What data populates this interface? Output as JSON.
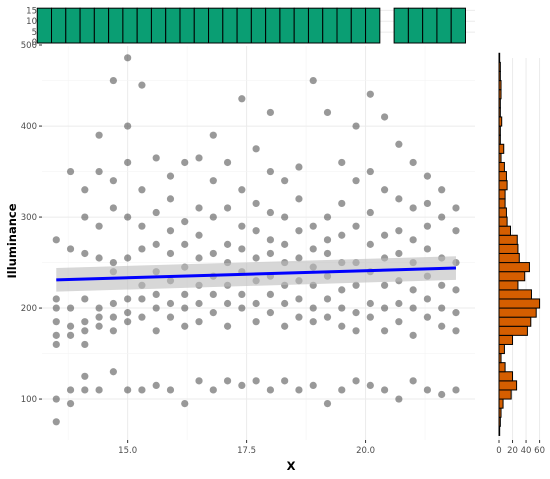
{
  "chart_data": {
    "type": "scatter",
    "xlabel": "X",
    "ylabel": "Illuminance",
    "xlim": [
      13.2,
      22.3
    ],
    "ylim": [
      55,
      488
    ],
    "x_ticks": [
      "15.0",
      "17.5",
      "20.0"
    ],
    "y_ticks": [
      "100",
      "200",
      "300",
      "400"
    ],
    "grid": true,
    "points": [
      [
        13.5,
        75
      ],
      [
        13.5,
        100
      ],
      [
        13.5,
        160
      ],
      [
        13.5,
        170
      ],
      [
        13.5,
        185
      ],
      [
        13.5,
        200
      ],
      [
        13.5,
        210
      ],
      [
        13.5,
        275
      ],
      [
        13.8,
        95
      ],
      [
        13.8,
        110
      ],
      [
        13.8,
        170
      ],
      [
        13.8,
        180
      ],
      [
        13.8,
        200
      ],
      [
        13.8,
        265
      ],
      [
        13.8,
        350
      ],
      [
        14.1,
        110
      ],
      [
        14.1,
        125
      ],
      [
        14.1,
        160
      ],
      [
        14.1,
        175
      ],
      [
        14.1,
        185
      ],
      [
        14.1,
        210
      ],
      [
        14.1,
        260
      ],
      [
        14.1,
        300
      ],
      [
        14.1,
        330
      ],
      [
        14.4,
        110
      ],
      [
        14.4,
        180
      ],
      [
        14.4,
        190
      ],
      [
        14.4,
        200
      ],
      [
        14.4,
        255
      ],
      [
        14.4,
        290
      ],
      [
        14.4,
        350
      ],
      [
        14.4,
        390
      ],
      [
        14.7,
        130
      ],
      [
        14.7,
        175
      ],
      [
        14.7,
        190
      ],
      [
        14.7,
        205
      ],
      [
        14.7,
        240
      ],
      [
        14.7,
        250
      ],
      [
        14.7,
        310
      ],
      [
        14.7,
        340
      ],
      [
        14.7,
        450
      ],
      [
        15.0,
        110
      ],
      [
        15.0,
        185
      ],
      [
        15.0,
        195
      ],
      [
        15.0,
        210
      ],
      [
        15.0,
        255
      ],
      [
        15.0,
        300
      ],
      [
        15.0,
        360
      ],
      [
        15.0,
        400
      ],
      [
        15.0,
        475
      ],
      [
        15.3,
        110
      ],
      [
        15.3,
        190
      ],
      [
        15.3,
        210
      ],
      [
        15.3,
        225
      ],
      [
        15.3,
        265
      ],
      [
        15.3,
        290
      ],
      [
        15.3,
        330
      ],
      [
        15.3,
        445
      ],
      [
        15.6,
        115
      ],
      [
        15.6,
        175
      ],
      [
        15.6,
        200
      ],
      [
        15.6,
        215
      ],
      [
        15.6,
        240
      ],
      [
        15.6,
        270
      ],
      [
        15.6,
        305
      ],
      [
        15.6,
        365
      ],
      [
        15.9,
        110
      ],
      [
        15.9,
        190
      ],
      [
        15.9,
        205
      ],
      [
        15.9,
        230
      ],
      [
        15.9,
        260
      ],
      [
        15.9,
        285
      ],
      [
        15.9,
        320
      ],
      [
        15.9,
        345
      ],
      [
        16.2,
        95
      ],
      [
        16.2,
        180
      ],
      [
        16.2,
        200
      ],
      [
        16.2,
        215
      ],
      [
        16.2,
        245
      ],
      [
        16.2,
        270
      ],
      [
        16.2,
        295
      ],
      [
        16.2,
        360
      ],
      [
        16.5,
        120
      ],
      [
        16.5,
        185
      ],
      [
        16.5,
        205
      ],
      [
        16.5,
        225
      ],
      [
        16.5,
        255
      ],
      [
        16.5,
        280
      ],
      [
        16.5,
        310
      ],
      [
        16.5,
        365
      ],
      [
        16.8,
        110
      ],
      [
        16.8,
        195
      ],
      [
        16.8,
        215
      ],
      [
        16.8,
        235
      ],
      [
        16.8,
        260
      ],
      [
        16.8,
        300
      ],
      [
        16.8,
        340
      ],
      [
        16.8,
        390
      ],
      [
        17.1,
        120
      ],
      [
        17.1,
        180
      ],
      [
        17.1,
        205
      ],
      [
        17.1,
        225
      ],
      [
        17.1,
        250
      ],
      [
        17.1,
        270
      ],
      [
        17.1,
        310
      ],
      [
        17.1,
        360
      ],
      [
        17.4,
        115
      ],
      [
        17.4,
        200
      ],
      [
        17.4,
        215
      ],
      [
        17.4,
        240
      ],
      [
        17.4,
        265
      ],
      [
        17.4,
        290
      ],
      [
        17.4,
        330
      ],
      [
        17.4,
        430
      ],
      [
        17.7,
        120
      ],
      [
        17.7,
        185
      ],
      [
        17.7,
        205
      ],
      [
        17.7,
        230
      ],
      [
        17.7,
        255
      ],
      [
        17.7,
        285
      ],
      [
        17.7,
        315
      ],
      [
        17.7,
        375
      ],
      [
        18.0,
        110
      ],
      [
        18.0,
        195
      ],
      [
        18.0,
        215
      ],
      [
        18.0,
        235
      ],
      [
        18.0,
        260
      ],
      [
        18.0,
        275
      ],
      [
        18.0,
        305
      ],
      [
        18.0,
        350
      ],
      [
        18.0,
        415
      ],
      [
        18.3,
        120
      ],
      [
        18.3,
        180
      ],
      [
        18.3,
        205
      ],
      [
        18.3,
        225
      ],
      [
        18.3,
        250
      ],
      [
        18.3,
        270
      ],
      [
        18.3,
        300
      ],
      [
        18.3,
        340
      ],
      [
        18.6,
        110
      ],
      [
        18.6,
        190
      ],
      [
        18.6,
        210
      ],
      [
        18.6,
        230
      ],
      [
        18.6,
        255
      ],
      [
        18.6,
        285
      ],
      [
        18.6,
        320
      ],
      [
        18.6,
        355
      ],
      [
        18.9,
        115
      ],
      [
        18.9,
        185
      ],
      [
        18.9,
        200
      ],
      [
        18.9,
        225
      ],
      [
        18.9,
        245
      ],
      [
        18.9,
        265
      ],
      [
        18.9,
        290
      ],
      [
        18.9,
        450
      ],
      [
        19.2,
        95
      ],
      [
        19.2,
        190
      ],
      [
        19.2,
        210
      ],
      [
        19.2,
        235
      ],
      [
        19.2,
        260
      ],
      [
        19.2,
        275
      ],
      [
        19.2,
        300
      ],
      [
        19.2,
        415
      ],
      [
        19.5,
        110
      ],
      [
        19.5,
        180
      ],
      [
        19.5,
        200
      ],
      [
        19.5,
        220
      ],
      [
        19.5,
        250
      ],
      [
        19.5,
        280
      ],
      [
        19.5,
        315
      ],
      [
        19.5,
        360
      ],
      [
        19.8,
        120
      ],
      [
        19.8,
        175
      ],
      [
        19.8,
        195
      ],
      [
        19.8,
        225
      ],
      [
        19.8,
        250
      ],
      [
        19.8,
        290
      ],
      [
        19.8,
        340
      ],
      [
        19.8,
        400
      ],
      [
        20.1,
        115
      ],
      [
        20.1,
        190
      ],
      [
        20.1,
        205
      ],
      [
        20.1,
        240
      ],
      [
        20.1,
        270
      ],
      [
        20.1,
        305
      ],
      [
        20.1,
        350
      ],
      [
        20.1,
        435
      ],
      [
        20.4,
        110
      ],
      [
        20.4,
        175
      ],
      [
        20.4,
        200
      ],
      [
        20.4,
        225
      ],
      [
        20.4,
        255
      ],
      [
        20.4,
        280
      ],
      [
        20.4,
        330
      ],
      [
        20.4,
        410
      ],
      [
        20.7,
        100
      ],
      [
        20.7,
        185
      ],
      [
        20.7,
        205
      ],
      [
        20.7,
        230
      ],
      [
        20.7,
        260
      ],
      [
        20.7,
        285
      ],
      [
        20.7,
        320
      ],
      [
        20.7,
        380
      ],
      [
        21.0,
        120
      ],
      [
        21.0,
        170
      ],
      [
        21.0,
        200
      ],
      [
        21.0,
        220
      ],
      [
        21.0,
        250
      ],
      [
        21.0,
        275
      ],
      [
        21.0,
        310
      ],
      [
        21.0,
        360
      ],
      [
        21.3,
        110
      ],
      [
        21.3,
        190
      ],
      [
        21.3,
        210
      ],
      [
        21.3,
        235
      ],
      [
        21.3,
        265
      ],
      [
        21.3,
        290
      ],
      [
        21.3,
        315
      ],
      [
        21.3,
        345
      ],
      [
        21.6,
        105
      ],
      [
        21.6,
        180
      ],
      [
        21.6,
        200
      ],
      [
        21.6,
        225
      ],
      [
        21.6,
        255
      ],
      [
        21.6,
        300
      ],
      [
        21.6,
        330
      ],
      [
        21.9,
        110
      ],
      [
        21.9,
        175
      ],
      [
        21.9,
        195
      ],
      [
        21.9,
        220
      ],
      [
        21.9,
        250
      ],
      [
        21.9,
        285
      ],
      [
        21.9,
        310
      ]
    ],
    "trend_line": {
      "x": [
        13.5,
        21.9
      ],
      "y": [
        231,
        244
      ],
      "ci": 13,
      "color": "#0000ff"
    },
    "point_color": "#333333",
    "top_histogram": {
      "y_ticks": [
        "500",
        "0",
        "5",
        "10",
        "15"
      ],
      "ylim": [
        0,
        17
      ],
      "bin_edges": [
        13.1,
        13.4,
        13.7,
        14.0,
        14.3,
        14.6,
        14.9,
        15.2,
        15.5,
        15.8,
        16.1,
        16.4,
        16.7,
        17.0,
        17.3,
        17.6,
        17.9,
        18.2,
        18.5,
        18.8,
        19.1,
        19.4,
        19.7,
        20.0,
        20.3,
        20.6,
        20.9,
        21.2,
        21.5,
        21.8,
        22.1
      ],
      "counts": [
        16,
        16,
        16,
        16,
        16,
        16,
        16,
        16,
        16,
        16,
        16,
        16,
        16,
        16,
        16,
        16,
        16,
        16,
        16,
        16,
        16,
        16,
        16,
        16,
        0,
        16,
        16,
        16,
        16,
        16
      ],
      "color": "#0a9e73"
    },
    "right_histogram": {
      "x_ticks": [
        "0",
        "20",
        "40",
        "60"
      ],
      "xlim": [
        0,
        68
      ],
      "bin_edges": [
        60,
        70,
        80,
        90,
        100,
        110,
        120,
        130,
        140,
        150,
        160,
        170,
        180,
        190,
        200,
        210,
        220,
        230,
        240,
        250,
        260,
        270,
        280,
        290,
        300,
        310,
        320,
        330,
        340,
        350,
        360,
        370,
        380,
        390,
        400,
        410,
        420,
        430,
        440,
        450,
        460,
        470,
        480
      ],
      "counts": [
        1,
        2,
        3,
        6,
        18,
        26,
        20,
        9,
        3,
        8,
        20,
        42,
        47,
        55,
        60,
        48,
        28,
        38,
        45,
        30,
        28,
        27,
        17,
        12,
        11,
        9,
        9,
        12,
        11,
        8,
        3,
        7,
        2,
        2,
        4,
        2,
        2,
        3,
        3,
        2,
        2,
        1
      ],
      "color": "#d55e00"
    }
  }
}
